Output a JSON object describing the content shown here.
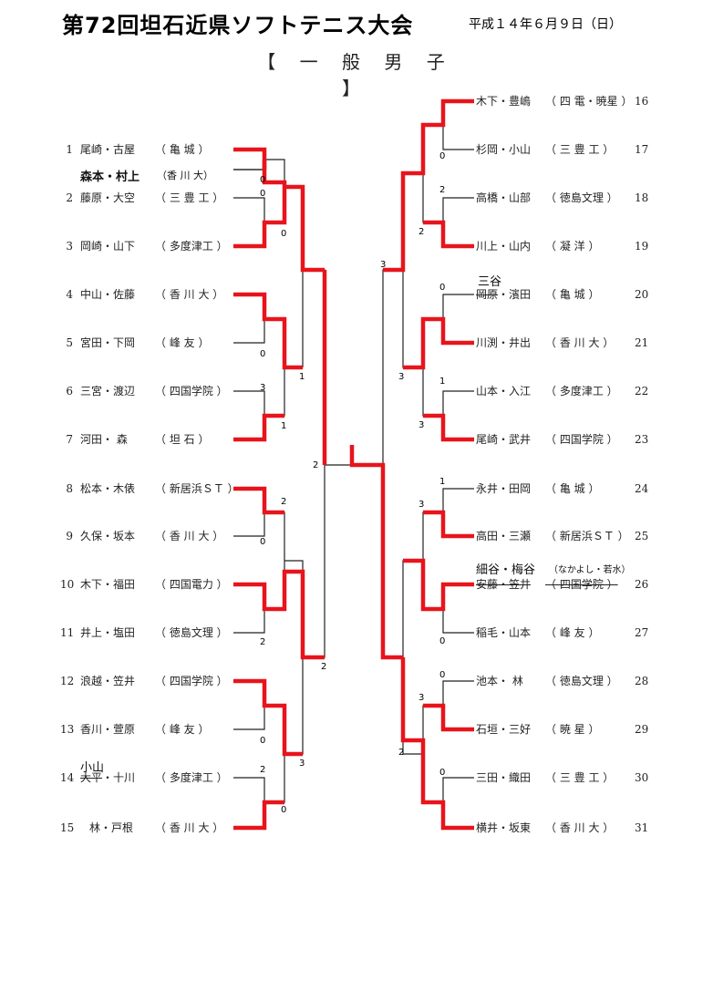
{
  "header": {
    "title": "第72回坦石近県ソフトテニス大会",
    "date": "平成１４年６月９日（日）",
    "division": "【 一 般 男 子 】"
  },
  "colors": {
    "winner_line": "#e8141c",
    "bracket_line": "#222222"
  },
  "left_entries": [
    {
      "num": "1",
      "names": "尾崎・古屋",
      "school": "（ 亀 城 ）"
    },
    {
      "num": "2",
      "names": "藤原・大空",
      "school": "（ 三 豊 工 ）"
    },
    {
      "num": "3",
      "names": "岡崎・山下",
      "school": "（ 多度津工 ）"
    },
    {
      "num": "4",
      "names": "中山・佐藤",
      "school": "（ 香 川 大 ）"
    },
    {
      "num": "5",
      "names": "宮田・下岡",
      "school": "（ 峰 友 ）"
    },
    {
      "num": "6",
      "names": "三宮・渡辺",
      "school": "（ 四国学院 ）"
    },
    {
      "num": "7",
      "names": "河田・ 森",
      "school": "（ 坦 石 ）"
    },
    {
      "num": "8",
      "names": "松本・木俵",
      "school": "（ 新居浜ＳＴ ）"
    },
    {
      "num": "9",
      "names": "久保・坂本",
      "school": "（ 香 川 大 ）"
    },
    {
      "num": "10",
      "names": "木下・福田",
      "school": "（ 四国電力 ）"
    },
    {
      "num": "11",
      "names": "井上・塩田",
      "school": "（ 徳島文理 ）"
    },
    {
      "num": "12",
      "names": "浪越・笠井",
      "school": "（ 四国学院 ）"
    },
    {
      "num": "13",
      "names": "香川・萱原",
      "school": "（ 峰 友 ）"
    },
    {
      "num": "14",
      "names_struck": "大平",
      "names": "・十川",
      "school": "（ 多度津工 ）"
    },
    {
      "num": "15",
      "names": "林・戸根",
      "school": "（ 香 川 大 ）"
    }
  ],
  "right_entries": [
    {
      "num": "16",
      "names": "木下・豊嶋",
      "school": "（ 四 電・暁星 ）"
    },
    {
      "num": "17",
      "names": "杉岡・小山",
      "school": "（ 三 豊 工 ）"
    },
    {
      "num": "18",
      "names": "高橋・山部",
      "school": "（ 徳島文理 ）"
    },
    {
      "num": "19",
      "names": "川上・山内",
      "school": "（ 凝 洋 ）"
    },
    {
      "num": "20",
      "names_struck": "岡原",
      "names": "・濱田",
      "school": "（ 亀 城 ）"
    },
    {
      "num": "21",
      "names": "川渕・井出",
      "school": "（ 香 川 大 ）"
    },
    {
      "num": "22",
      "names": "山本・入江",
      "school": "（ 多度津工 ）"
    },
    {
      "num": "23",
      "names": "尾崎・武井",
      "school": "（ 四国学院 ）"
    },
    {
      "num": "24",
      "names": "永井・田岡",
      "school": "（ 亀 城 ）"
    },
    {
      "num": "25",
      "names": "高田・三瀬",
      "school": "（ 新居浜ＳＴ ）"
    },
    {
      "num": "26",
      "names_struck": "安藤・笠井",
      "school_struck": "（ 四国学院 ）"
    },
    {
      "num": "27",
      "names": "稲毛・山本",
      "school": "（ 峰 友 ）"
    },
    {
      "num": "28",
      "names": "池本・ 林",
      "school": "（ 徳島文理 ）"
    },
    {
      "num": "29",
      "names": "石垣・三好",
      "school": "（ 暁 星 ）"
    },
    {
      "num": "30",
      "names": "三田・織田",
      "school": "（ 三 豊 工 ）"
    },
    {
      "num": "31",
      "names": "横井・坂東",
      "school": "（ 香 川 大 ）"
    }
  ],
  "notes": {
    "substitute_1": "森本・村上",
    "substitute_1_school": "（香 川 大）",
    "substitute_14": "小山",
    "substitute_20": "三谷",
    "substitute_26": "細谷・梅谷",
    "substitute_26_school": "（なかよし・若水）"
  },
  "scores": {
    "l1": "0",
    "l2": "0",
    "l3": "0",
    "l5": "0",
    "l6": "1",
    "l7": "3",
    "l8": "1",
    "l9": "2",
    "l10": "2",
    "l11": "0",
    "l12": "2",
    "l13": "2",
    "l14": "0",
    "l15": "2",
    "l16": "3",
    "l17": "0",
    "r1": "0",
    "r2": "2",
    "r3": "2",
    "r4": "3",
    "r5": "0",
    "r6": "3",
    "r7": "1",
    "r8": "3",
    "r9": "1",
    "r10": "3",
    "r11": "0",
    "r12": "0",
    "r13": "3",
    "r14": "0",
    "r15": "2"
  }
}
